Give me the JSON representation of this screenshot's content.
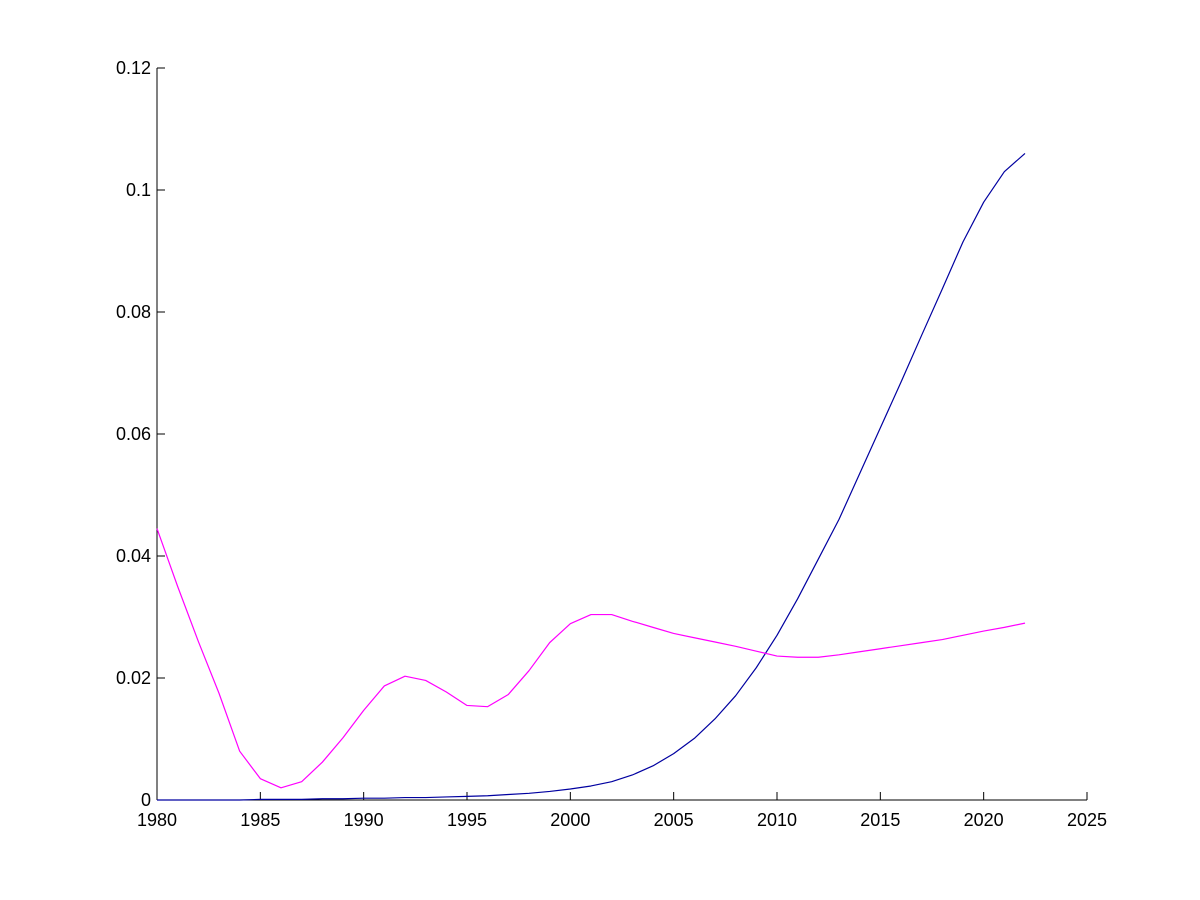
{
  "chart_data": {
    "type": "line",
    "title": "",
    "xlabel": "",
    "ylabel": "",
    "xlim": [
      1980,
      2025
    ],
    "ylim": [
      0,
      0.12
    ],
    "grid": false,
    "legend": null,
    "x_ticks": [
      1980,
      1985,
      1990,
      1995,
      2000,
      2005,
      2010,
      2015,
      2020,
      2025
    ],
    "y_ticks": [
      0,
      0.02,
      0.04,
      0.06,
      0.08,
      0.1,
      0.12
    ],
    "x_tick_labels": [
      "1980",
      "1985",
      "1990",
      "1995",
      "2000",
      "2005",
      "2010",
      "2015",
      "2020",
      "2025"
    ],
    "y_tick_labels": [
      "0",
      "0.02",
      "0.04",
      "0.06",
      "0.08",
      "0.1",
      "0.12"
    ],
    "series": [
      {
        "color": "#0000a0",
        "x": [
          1980,
          1981,
          1982,
          1983,
          1984,
          1985,
          1986,
          1987,
          1988,
          1989,
          1990,
          1991,
          1992,
          1993,
          1994,
          1995,
          1996,
          1997,
          1998,
          1999,
          2000,
          2001,
          2002,
          2003,
          2004,
          2005,
          2006,
          2007,
          2008,
          2009,
          2010,
          2011,
          2012,
          2013,
          2014,
          2015,
          2016,
          2017,
          2018,
          2019,
          2020,
          2021,
          2022
        ],
        "y": [
          0,
          0,
          0,
          0,
          0,
          0.0001,
          0.0001,
          0.0001,
          0.0002,
          0.0002,
          0.0003,
          0.0003,
          0.0004,
          0.0004,
          0.0005,
          0.0006,
          0.0007,
          0.0009,
          0.0011,
          0.0014,
          0.0018,
          0.0023,
          0.003,
          0.0041,
          0.0056,
          0.0076,
          0.0101,
          0.0133,
          0.0171,
          0.0217,
          0.027,
          0.033,
          0.0395,
          0.046,
          0.0535,
          0.061,
          0.0685,
          0.0762,
          0.0838,
          0.0915,
          0.098,
          0.103,
          0.106
        ]
      },
      {
        "color": "#ff00ff",
        "x": [
          1980,
          1981,
          1982,
          1983,
          1984,
          1985,
          1986,
          1987,
          1988,
          1989,
          1990,
          1991,
          1992,
          1993,
          1994,
          1995,
          1996,
          1997,
          1998,
          1999,
          2000,
          2001,
          2002,
          2003,
          2004,
          2005,
          2006,
          2007,
          2008,
          2009,
          2010,
          2011,
          2012,
          2013,
          2014,
          2015,
          2016,
          2017,
          2018,
          2019,
          2020,
          2021,
          2022
        ],
        "y": [
          0.0445,
          0.035,
          0.026,
          0.0175,
          0.008,
          0.0035,
          0.002,
          0.003,
          0.0062,
          0.0102,
          0.0147,
          0.0187,
          0.0203,
          0.0196,
          0.0177,
          0.0155,
          0.0153,
          0.0173,
          0.0212,
          0.0258,
          0.0289,
          0.0304,
          0.0304,
          0.0293,
          0.0283,
          0.0273,
          0.0266,
          0.0259,
          0.0252,
          0.0244,
          0.0236,
          0.0234,
          0.0234,
          0.0238,
          0.0243,
          0.0248,
          0.0253,
          0.0258,
          0.0263,
          0.027,
          0.0277,
          0.0283,
          0.029
        ]
      }
    ]
  }
}
